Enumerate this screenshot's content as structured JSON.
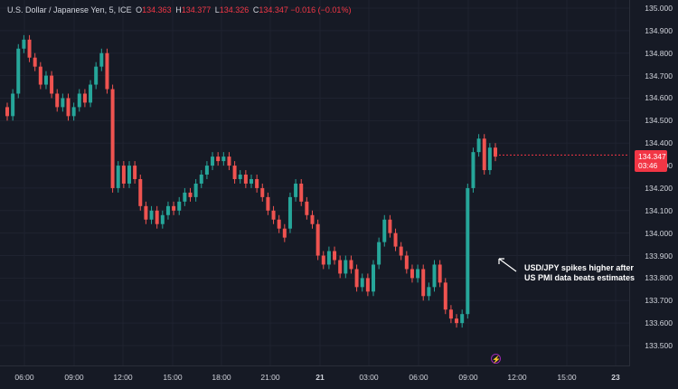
{
  "legend": {
    "symbol": "U.S. Dollar / Japanese Yen, 5, ICE",
    "open_label": "O",
    "open": "134.363",
    "high_label": "H",
    "high": "134.377",
    "low_label": "L",
    "low": "134.326",
    "close_label": "C",
    "close": "134.347",
    "change": "−0.016 (−0.01%)"
  },
  "last_price": {
    "price": "134.347",
    "countdown": "03:46"
  },
  "annotation": {
    "line1": "USD/JPY spikes higher after",
    "line2": "US PMI data beats estimates"
  },
  "event_icon": "lightning-icon",
  "colors": {
    "background": "#161a25",
    "up": "#26a69a",
    "down": "#ef5350",
    "badge": "#f23645",
    "event": "#9c27b0"
  },
  "chart_data": {
    "type": "candlestick",
    "y_ticks": [
      "135.000",
      "134.900",
      "134.800",
      "134.700",
      "134.600",
      "134.500",
      "134.400",
      "134.300",
      "134.200",
      "134.100",
      "134.000",
      "133.900",
      "133.800",
      "133.700",
      "133.600",
      "133.500"
    ],
    "ylim": [
      133.46,
      135.02
    ],
    "x_ticks": [
      "06:00",
      "09:00",
      "12:00",
      "15:00",
      "18:00",
      "21:00",
      "21",
      "03:00",
      "06:00",
      "09:00",
      "12:00",
      "15:00",
      "23"
    ],
    "series": [
      {
        "values": [
          [
            134.56,
            134.52
          ],
          [
            134.52,
            134.62
          ],
          [
            134.62,
            134.82
          ],
          [
            134.82,
            134.86
          ],
          [
            134.86,
            134.78
          ],
          [
            134.78,
            134.74
          ],
          [
            134.74,
            134.66
          ],
          [
            134.66,
            134.7
          ],
          [
            134.7,
            134.62
          ],
          [
            134.62,
            134.56
          ],
          [
            134.56,
            134.6
          ],
          [
            134.6,
            134.52
          ],
          [
            134.52,
            134.56
          ],
          [
            134.56,
            134.62
          ],
          [
            134.62,
            134.58
          ],
          [
            134.58,
            134.66
          ],
          [
            134.66,
            134.74
          ],
          [
            134.74,
            134.8
          ],
          [
            134.8,
            134.64
          ],
          [
            134.64,
            134.2
          ],
          [
            134.2,
            134.3
          ],
          [
            134.3,
            134.22
          ],
          [
            134.22,
            134.3
          ],
          [
            134.3,
            134.24
          ],
          [
            134.24,
            134.12
          ],
          [
            134.12,
            134.06
          ],
          [
            134.06,
            134.1
          ],
          [
            134.1,
            134.04
          ],
          [
            134.04,
            134.08
          ],
          [
            134.08,
            134.12
          ],
          [
            134.12,
            134.1
          ],
          [
            134.1,
            134.14
          ],
          [
            134.14,
            134.18
          ],
          [
            134.18,
            134.16
          ],
          [
            134.16,
            134.22
          ],
          [
            134.22,
            134.26
          ],
          [
            134.26,
            134.3
          ],
          [
            134.3,
            134.34
          ],
          [
            134.34,
            134.32
          ],
          [
            134.32,
            134.34
          ],
          [
            134.34,
            134.3
          ],
          [
            134.3,
            134.24
          ],
          [
            134.24,
            134.26
          ],
          [
            134.26,
            134.22
          ],
          [
            134.22,
            134.24
          ],
          [
            134.24,
            134.2
          ],
          [
            134.2,
            134.16
          ],
          [
            134.16,
            134.1
          ],
          [
            134.1,
            134.06
          ],
          [
            134.06,
            134.02
          ],
          [
            134.02,
            133.98
          ],
          [
            134.02,
            134.16
          ],
          [
            134.16,
            134.22
          ],
          [
            134.22,
            134.14
          ],
          [
            134.14,
            134.08
          ],
          [
            134.08,
            134.04
          ],
          [
            134.04,
            133.9
          ],
          [
            133.9,
            133.86
          ],
          [
            133.86,
            133.92
          ],
          [
            133.92,
            133.88
          ],
          [
            133.88,
            133.82
          ],
          [
            133.82,
            133.88
          ],
          [
            133.88,
            133.84
          ],
          [
            133.84,
            133.76
          ],
          [
            133.76,
            133.8
          ],
          [
            133.8,
            133.74
          ],
          [
            133.74,
            133.86
          ],
          [
            133.86,
            133.96
          ],
          [
            133.96,
            134.06
          ],
          [
            134.06,
            134.0
          ],
          [
            134.0,
            133.94
          ],
          [
            133.94,
            133.9
          ],
          [
            133.9,
            133.84
          ],
          [
            133.84,
            133.8
          ],
          [
            133.8,
            133.84
          ],
          [
            133.84,
            133.72
          ],
          [
            133.72,
            133.76
          ],
          [
            133.76,
            133.86
          ],
          [
            133.86,
            133.78
          ],
          [
            133.78,
            133.66
          ],
          [
            133.66,
            133.62
          ],
          [
            133.62,
            133.6
          ],
          [
            133.6,
            133.64
          ],
          [
            133.64,
            134.2
          ],
          [
            134.2,
            134.36
          ],
          [
            134.36,
            134.42
          ],
          [
            134.42,
            134.28
          ],
          [
            134.28,
            134.38
          ],
          [
            134.38,
            134.34
          ]
        ]
      }
    ]
  }
}
